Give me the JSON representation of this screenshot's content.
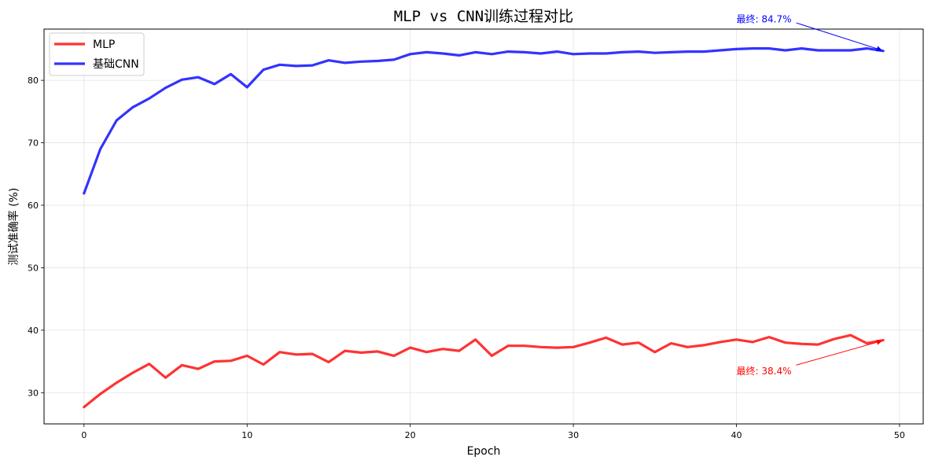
{
  "chart_data": {
    "type": "line",
    "title": "MLP vs CNN训练过程对比",
    "xlabel": "Epoch",
    "ylabel": "测试准确率 (%)",
    "xlim": [
      -2.45,
      51.45
    ],
    "ylim": [
      25,
      88.2
    ],
    "xticks": [
      0,
      10,
      20,
      30,
      40,
      50
    ],
    "yticks": [
      30,
      40,
      50,
      60,
      70,
      80
    ],
    "grid": true,
    "legend_position": "top-left",
    "x": [
      0,
      1,
      2,
      3,
      4,
      5,
      6,
      7,
      8,
      9,
      10,
      11,
      12,
      13,
      14,
      15,
      16,
      17,
      18,
      19,
      20,
      21,
      22,
      23,
      24,
      25,
      26,
      27,
      28,
      29,
      30,
      31,
      32,
      33,
      34,
      35,
      36,
      37,
      38,
      39,
      40,
      41,
      42,
      43,
      44,
      45,
      46,
      47,
      48,
      49
    ],
    "series": [
      {
        "name": "MLP",
        "color": "#ff0000",
        "values": [
          27.7,
          29.8,
          31.6,
          33.2,
          34.6,
          32.4,
          34.4,
          33.8,
          35.0,
          35.1,
          35.9,
          34.5,
          36.5,
          36.1,
          36.2,
          34.9,
          36.7,
          36.4,
          36.6,
          35.9,
          37.2,
          36.5,
          37.0,
          36.7,
          38.5,
          35.9,
          37.5,
          37.5,
          37.3,
          37.2,
          37.3,
          38.0,
          38.8,
          37.7,
          38.0,
          36.5,
          37.9,
          37.3,
          37.6,
          38.1,
          38.5,
          38.1,
          38.9,
          38.0,
          37.8,
          37.7,
          38.6,
          39.2,
          37.9,
          38.4
        ]
      },
      {
        "name": "基础CNN",
        "color": "#0000ff",
        "values": [
          61.9,
          69.0,
          73.6,
          75.7,
          77.1,
          78.8,
          80.1,
          80.5,
          79.4,
          81.0,
          78.9,
          81.7,
          82.5,
          82.3,
          82.4,
          83.2,
          82.8,
          83.0,
          83.1,
          83.3,
          84.2,
          84.5,
          84.3,
          84.0,
          84.5,
          84.2,
          84.6,
          84.5,
          84.3,
          84.6,
          84.2,
          84.3,
          84.3,
          84.5,
          84.6,
          84.4,
          84.5,
          84.6,
          84.6,
          84.8,
          85.0,
          85.1,
          85.1,
          84.8,
          85.1,
          84.8,
          84.8,
          84.8,
          85.1,
          84.7
        ]
      }
    ],
    "annotations": [
      {
        "text": "最终: 38.4%",
        "color": "#ff0000",
        "point": [
          49,
          38.4
        ],
        "text_pos": [
          40,
          33.4
        ]
      },
      {
        "text": "最终: 84.7%",
        "color": "#0000ff",
        "point": [
          49,
          84.7
        ],
        "text_pos": [
          40,
          89.7
        ]
      }
    ]
  }
}
